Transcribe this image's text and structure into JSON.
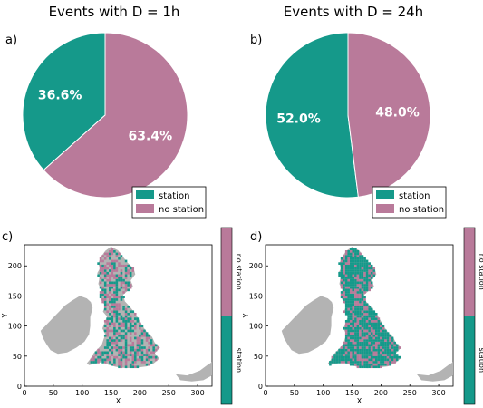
{
  "colors": {
    "station": "#15998a",
    "no_station": "#b97a9a",
    "land": "#b3b3b3"
  },
  "chart_data": [
    {
      "type": "pie",
      "panel_label": "a)",
      "title": "Events with D = 1h",
      "slices": [
        {
          "label": "station",
          "value": 36.6,
          "value_label": "36.6%"
        },
        {
          "label": "no station",
          "value": 63.4,
          "value_label": "63.4%"
        }
      ],
      "legend": [
        "station",
        "no station"
      ],
      "legend_position": "lower-right"
    },
    {
      "type": "pie",
      "panel_label": "b)",
      "title": "Events with D = 24h",
      "slices": [
        {
          "label": "station",
          "value": 52.0,
          "value_label": "52.0%"
        },
        {
          "label": "no station",
          "value": 48.0,
          "value_label": "48.0%"
        }
      ],
      "legend": [
        "station",
        "no station"
      ],
      "legend_position": "lower-right"
    },
    {
      "type": "heatmap",
      "panel_label": "c)",
      "xlabel": "X",
      "ylabel": "Y",
      "xlim": [
        0,
        325
      ],
      "ylim": [
        0,
        235
      ],
      "xticks": [
        "0",
        "50",
        "100",
        "150",
        "200",
        "250",
        "300"
      ],
      "yticks": [
        "0",
        "50",
        "100",
        "150",
        "200"
      ],
      "colorbar": [
        "station",
        "no station"
      ]
    },
    {
      "type": "heatmap",
      "panel_label": "d)",
      "xlabel": "X",
      "ylabel": "Y",
      "xlim": [
        0,
        325
      ],
      "ylim": [
        0,
        235
      ],
      "xticks": [
        "0",
        "50",
        "100",
        "150",
        "200",
        "250",
        "300"
      ],
      "yticks": [
        "0",
        "50",
        "100",
        "150",
        "200"
      ],
      "colorbar": [
        "station",
        "no station"
      ]
    }
  ]
}
